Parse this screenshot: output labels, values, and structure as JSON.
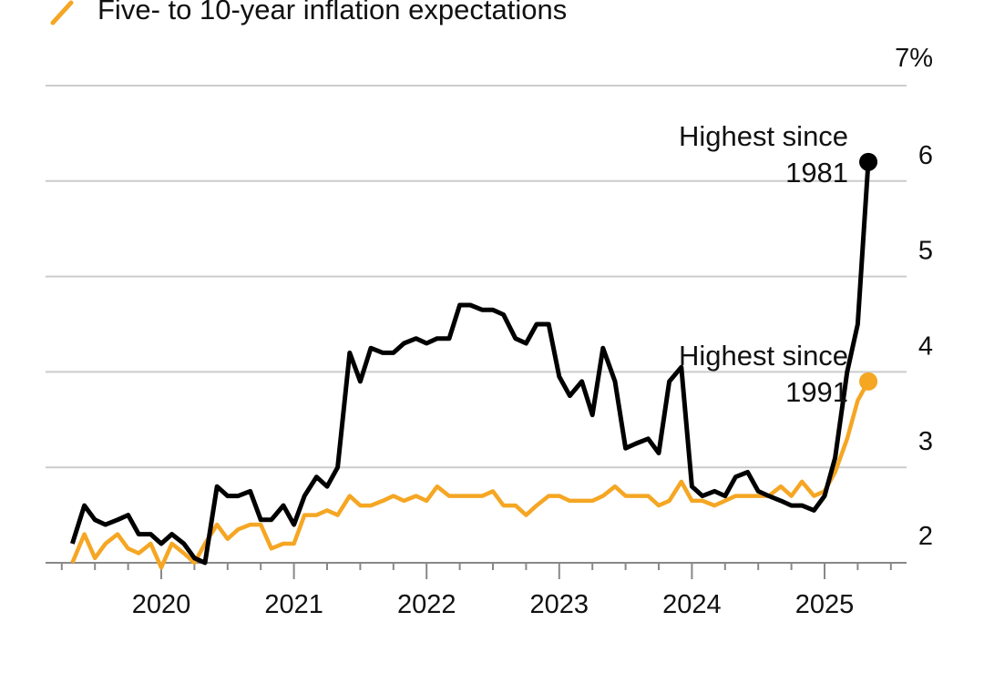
{
  "legend": {
    "series2_label": "Five- to 10-year inflation expectations",
    "series2_color": "#F5A623"
  },
  "chart_data": {
    "type": "line",
    "title": "",
    "xlabel": "",
    "ylabel": "",
    "ylim": [
      2,
      7
    ],
    "y_ticks": [
      {
        "value": 2,
        "label": "2"
      },
      {
        "value": 3,
        "label": "3"
      },
      {
        "value": 4,
        "label": "4"
      },
      {
        "value": 5,
        "label": "5"
      },
      {
        "value": 6,
        "label": "6"
      },
      {
        "value": 7,
        "label": "7%"
      }
    ],
    "x_ticks": [
      {
        "value": 2020,
        "label": "2020"
      },
      {
        "value": 2021,
        "label": "2021"
      },
      {
        "value": 2022,
        "label": "2022"
      },
      {
        "value": 2023,
        "label": "2023"
      },
      {
        "value": 2024,
        "label": "2024"
      },
      {
        "value": 2025,
        "label": "2025"
      }
    ],
    "grid": true,
    "legend_position": "top-left",
    "series": [
      {
        "color": "#000000",
        "x": [
          2019.33,
          2019.42,
          2019.5,
          2019.58,
          2019.67,
          2019.75,
          2019.83,
          2019.92,
          2020.0,
          2020.08,
          2020.17,
          2020.25,
          2020.33,
          2020.42,
          2020.5,
          2020.58,
          2020.67,
          2020.75,
          2020.83,
          2020.92,
          2021.0,
          2021.08,
          2021.17,
          2021.25,
          2021.33,
          2021.42,
          2021.5,
          2021.58,
          2021.67,
          2021.75,
          2021.83,
          2021.92,
          2022.0,
          2022.08,
          2022.17,
          2022.25,
          2022.33,
          2022.42,
          2022.5,
          2022.58,
          2022.67,
          2022.75,
          2022.83,
          2022.92,
          2023.0,
          2023.08,
          2023.17,
          2023.25,
          2023.33,
          2023.42,
          2023.5,
          2023.58,
          2023.67,
          2023.75,
          2023.83,
          2023.92,
          2024.0,
          2024.08,
          2024.17,
          2024.25,
          2024.33,
          2024.42,
          2024.5,
          2024.58,
          2024.67,
          2024.75,
          2024.83,
          2024.92,
          2025.0,
          2025.08,
          2025.17,
          2025.25,
          2025.33
        ],
        "values": [
          2.2,
          2.6,
          2.45,
          2.4,
          2.45,
          2.5,
          2.3,
          2.3,
          2.2,
          2.3,
          2.2,
          2.05,
          2.0,
          2.8,
          2.7,
          2.7,
          2.75,
          2.45,
          2.45,
          2.6,
          2.4,
          2.7,
          2.9,
          2.8,
          3.0,
          4.2,
          3.9,
          4.25,
          4.2,
          4.2,
          4.3,
          4.35,
          4.3,
          4.35,
          4.35,
          4.7,
          4.7,
          4.65,
          4.65,
          4.6,
          4.35,
          4.3,
          4.5,
          4.5,
          3.95,
          3.75,
          3.9,
          3.55,
          4.25,
          3.9,
          3.2,
          3.25,
          3.3,
          3.15,
          3.9,
          4.05,
          2.8,
          2.7,
          2.75,
          2.7,
          2.9,
          2.95,
          2.75,
          2.7,
          2.65,
          2.6,
          2.6,
          2.55,
          2.7,
          3.1,
          4.0,
          4.5,
          6.2
        ]
      },
      {
        "name": "Five- to 10-year inflation expectations",
        "color": "#F5A623",
        "x": [
          2019.33,
          2019.42,
          2019.5,
          2019.58,
          2019.67,
          2019.75,
          2019.83,
          2019.92,
          2020.0,
          2020.08,
          2020.17,
          2020.25,
          2020.33,
          2020.42,
          2020.5,
          2020.58,
          2020.67,
          2020.75,
          2020.83,
          2020.92,
          2021.0,
          2021.08,
          2021.17,
          2021.25,
          2021.33,
          2021.42,
          2021.5,
          2021.58,
          2021.67,
          2021.75,
          2021.83,
          2021.92,
          2022.0,
          2022.08,
          2022.17,
          2022.25,
          2022.33,
          2022.42,
          2022.5,
          2022.58,
          2022.67,
          2022.75,
          2022.83,
          2022.92,
          2023.0,
          2023.08,
          2023.17,
          2023.25,
          2023.33,
          2023.42,
          2023.5,
          2023.58,
          2023.67,
          2023.75,
          2023.83,
          2023.92,
          2024.0,
          2024.08,
          2024.17,
          2024.25,
          2024.33,
          2024.42,
          2024.5,
          2024.58,
          2024.67,
          2024.75,
          2024.83,
          2024.92,
          2025.0,
          2025.08,
          2025.17,
          2025.25,
          2025.33
        ],
        "values": [
          2.0,
          2.3,
          2.05,
          2.2,
          2.3,
          2.15,
          2.1,
          2.2,
          1.95,
          2.2,
          2.1,
          2.0,
          2.2,
          2.4,
          2.25,
          2.35,
          2.4,
          2.4,
          2.15,
          2.2,
          2.2,
          2.5,
          2.5,
          2.55,
          2.5,
          2.7,
          2.6,
          2.6,
          2.65,
          2.7,
          2.65,
          2.7,
          2.65,
          2.8,
          2.7,
          2.7,
          2.7,
          2.7,
          2.75,
          2.6,
          2.6,
          2.5,
          2.6,
          2.7,
          2.7,
          2.65,
          2.65,
          2.65,
          2.7,
          2.8,
          2.7,
          2.7,
          2.7,
          2.6,
          2.65,
          2.85,
          2.65,
          2.65,
          2.6,
          2.65,
          2.7,
          2.7,
          2.7,
          2.7,
          2.8,
          2.7,
          2.85,
          2.7,
          2.75,
          2.95,
          3.3,
          3.7,
          3.9
        ]
      }
    ],
    "annotations": [
      {
        "series": 0,
        "line1": "Highest since",
        "line2": "1981"
      },
      {
        "series": 1,
        "line1": "Highest since",
        "line2": "1991"
      }
    ]
  }
}
